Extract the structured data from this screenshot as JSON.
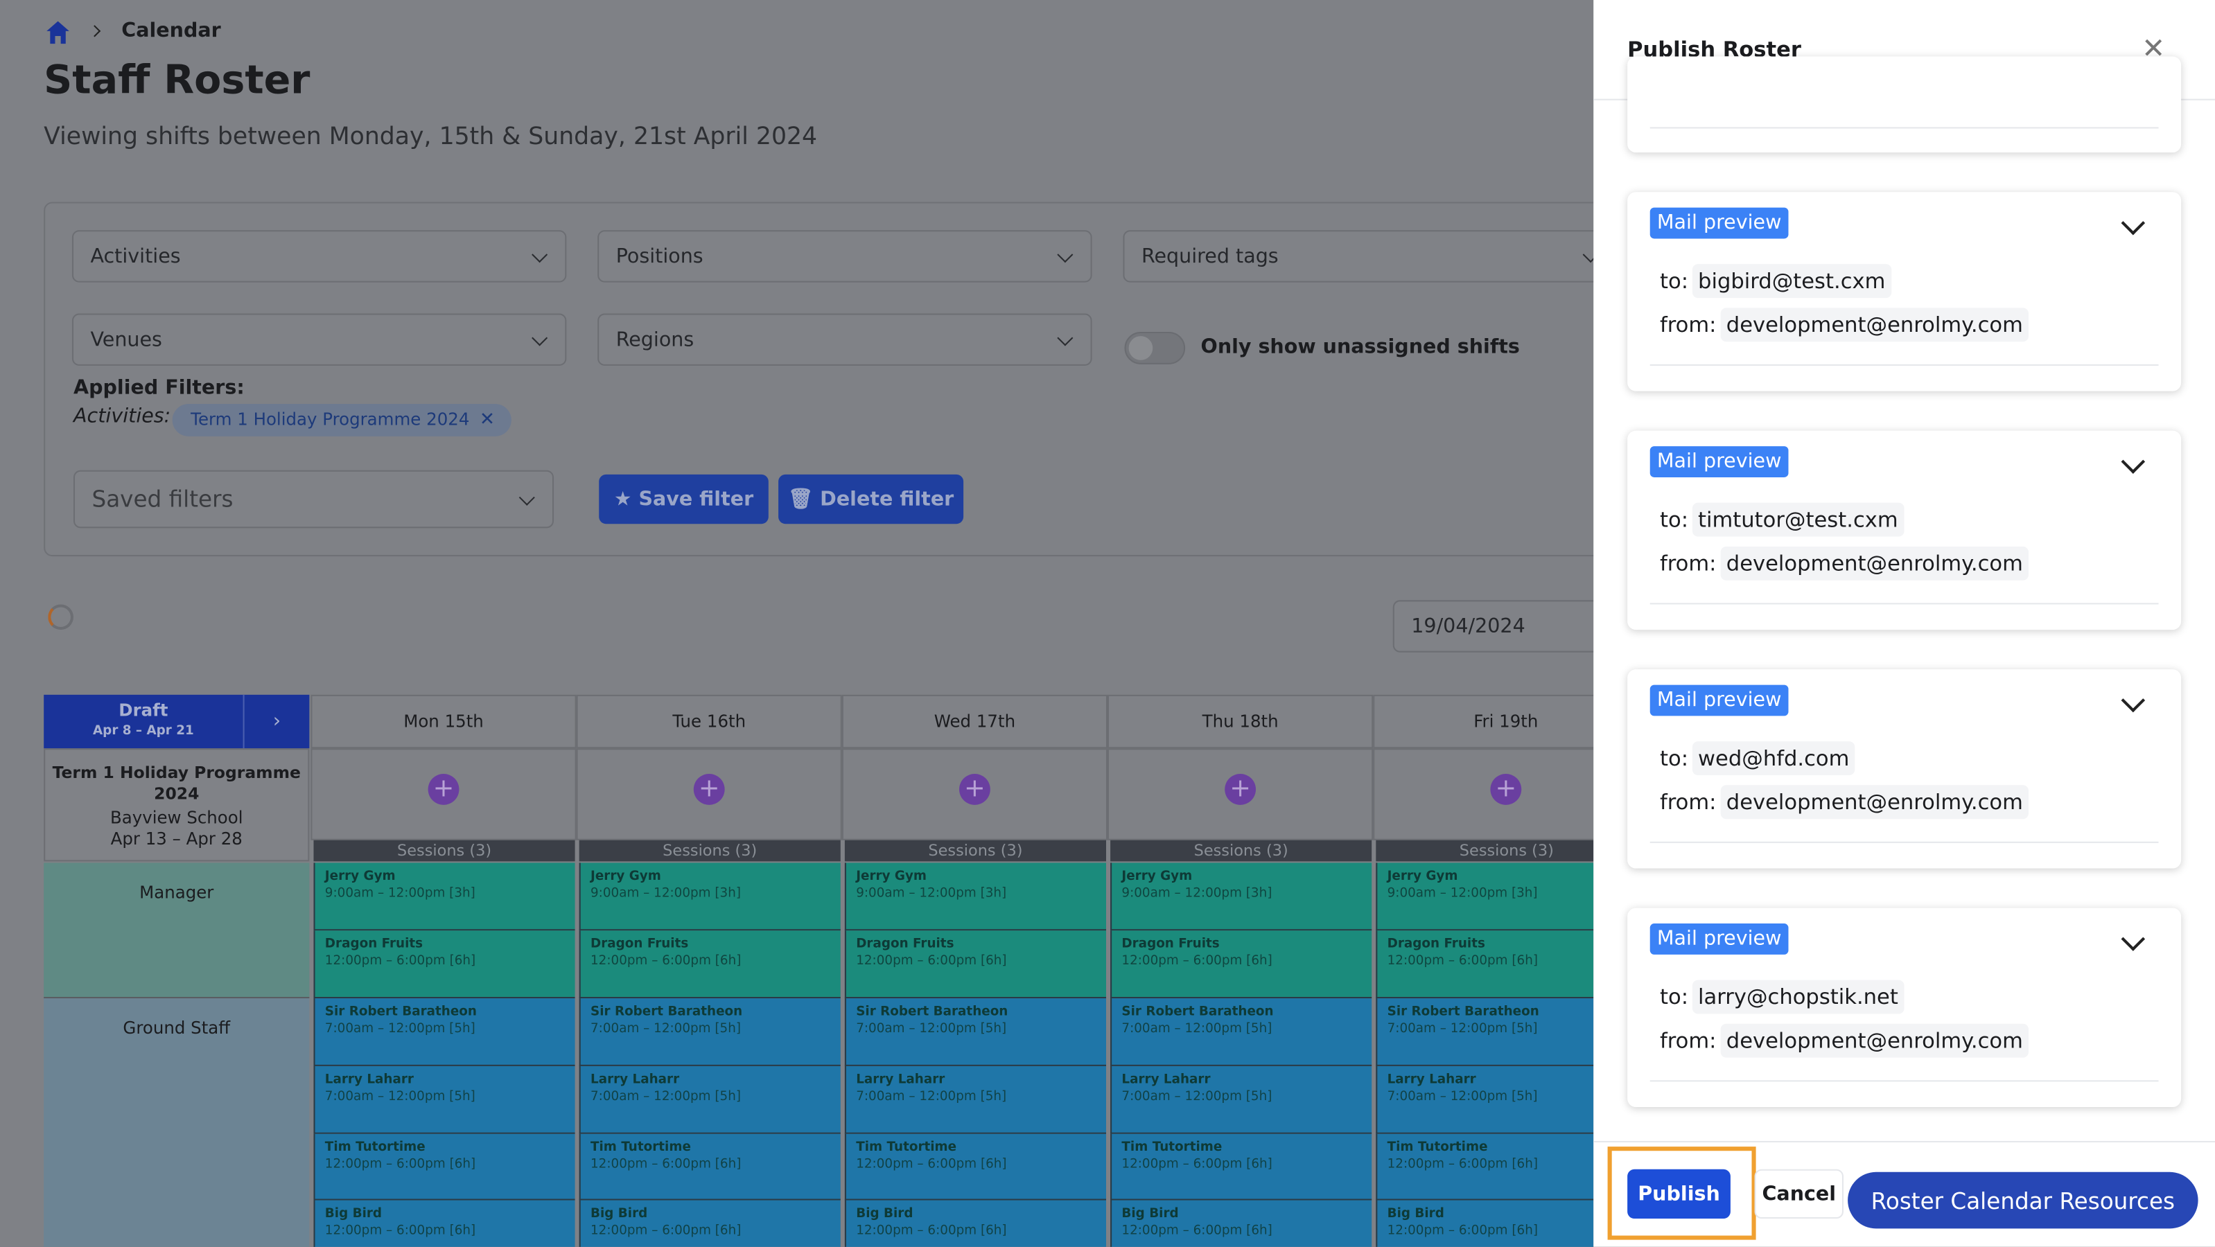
{
  "breadcrumb": {
    "current": "Calendar"
  },
  "page": {
    "title": "Staff Roster",
    "subtitle": "Viewing shifts between Monday, 15th & Sunday, 21st April 2024"
  },
  "filters": {
    "activities": "Activities",
    "positions": "Positions",
    "required_tags": "Required tags",
    "venues": "Venues",
    "regions": "Regions",
    "toggle": "Only show unassigned shifts",
    "applied_title": "Applied Filters:",
    "applied_label": "Activities:",
    "applied_chip": "Term 1 Holiday Programme 2024",
    "saved": "Saved filters",
    "save_btn": "Save filter",
    "delete_btn": "Delete filter"
  },
  "date": "19/04/2024",
  "roster": {
    "draft": "Draft",
    "range": "Apr 8 – Apr 21",
    "program": {
      "name": "Term 1 Holiday Programme 2024",
      "venue": "Bayview School",
      "dates": "Apr 13 – Apr 28"
    },
    "days": [
      "Mon 15th",
      "Tue 16th",
      "Wed 17th",
      "Thu 18th",
      "Fri 19th"
    ],
    "sessions_label": "Sessions (3)",
    "groups": [
      {
        "name": "Manager",
        "shifts": [
          {
            "name": "Jerry Gym",
            "time": "9:00am – 12:00pm [3h]"
          },
          {
            "name": "Dragon Fruits",
            "time": "12:00pm – 6:00pm [6h]"
          }
        ]
      },
      {
        "name": "Ground Staff",
        "shifts": [
          {
            "name": "Sir Robert Baratheon",
            "time": "7:00am – 12:00pm [5h]"
          },
          {
            "name": "Larry Laharr",
            "time": "7:00am – 12:00pm [5h]"
          },
          {
            "name": "Tim Tutortime",
            "time": "12:00pm – 6:00pm [6h]"
          },
          {
            "name": "Big Bird",
            "time": "12:00pm – 6:00pm [6h]"
          }
        ]
      }
    ]
  },
  "modal": {
    "title": "Publish Roster",
    "tag": "Mail preview",
    "to_label": "to:",
    "from_label": "from:",
    "cards": [
      {
        "to": "bigbird@test.cxm",
        "from": "development@enrolmy.com"
      },
      {
        "to": "timtutor@test.cxm",
        "from": "development@enrolmy.com"
      },
      {
        "to": "wed@hfd.com",
        "from": "development@enrolmy.com"
      },
      {
        "to": "larry@chopstik.net",
        "from": "development@enrolmy.com"
      }
    ],
    "publish": "Publish",
    "cancel": "Cancel",
    "resources": "Roster Calendar Resources"
  }
}
